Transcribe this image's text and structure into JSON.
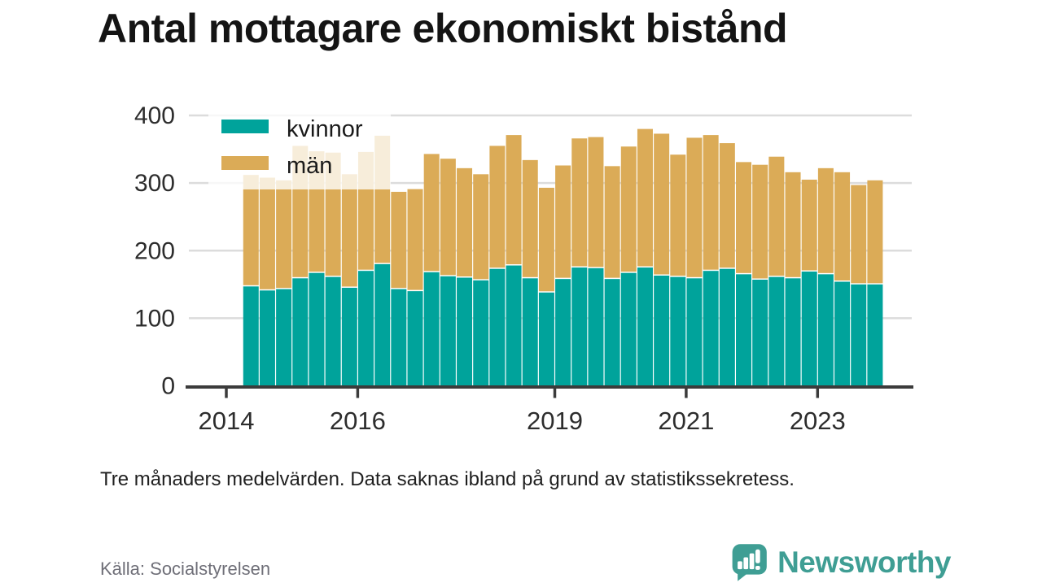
{
  "title": "Antal mottagare ekonomiskt bistånd",
  "note": "Tre månaders medelvärden. Data saknas ibland på grund av statistikssekretess.",
  "source": "Källa: Socialstyrelsen",
  "logo_text": "Newsworthy",
  "colors": {
    "kvinnor": "#00a39b",
    "man": "#dbab57",
    "logo_teal": "#3f9e94",
    "axis": "#3b3b3b",
    "grid": "#dcdcdc",
    "text": "#2d2d2d",
    "legend_text": "#1a1a1a",
    "legend_bg_opacity": 0.78
  },
  "chart_data": {
    "type": "bar",
    "stacked": true,
    "title": "Antal mottagare ekonomiskt bistånd",
    "x_periods": [
      "2014-Q2",
      "2014-Q3",
      "2014-Q4",
      "2015-Q1",
      "2015-Q2",
      "2015-Q3",
      "2015-Q4",
      "2016-Q1",
      "2016-Q2",
      "2016-Q3",
      "2016-Q4",
      "2017-Q1",
      "2017-Q2",
      "2017-Q3",
      "2017-Q4",
      "2018-Q1",
      "2018-Q2",
      "2018-Q3",
      "2018-Q4",
      "2019-Q1",
      "2019-Q2",
      "2019-Q3",
      "2019-Q4",
      "2020-Q1",
      "2020-Q2",
      "2020-Q3",
      "2020-Q4",
      "2021-Q1",
      "2021-Q2",
      "2021-Q3",
      "2021-Q4",
      "2022-Q1",
      "2022-Q2",
      "2022-Q3",
      "2022-Q4",
      "2023-Q1",
      "2023-Q2",
      "2023-Q3",
      "2023-Q4"
    ],
    "series": [
      {
        "name": "kvinnor",
        "values": [
          147,
          141,
          143,
          159,
          167,
          161,
          145,
          170,
          180,
          143,
          140,
          168,
          162,
          160,
          156,
          173,
          178,
          159,
          138,
          158,
          175,
          174,
          158,
          167,
          175,
          163,
          161,
          159,
          170,
          173,
          165,
          157,
          161,
          159,
          169,
          165,
          154,
          150,
          150
        ]
      },
      {
        "name": "män",
        "values": [
          165,
          167,
          161,
          196,
          180,
          184,
          168,
          176,
          190,
          144,
          151,
          175,
          174,
          162,
          157,
          182,
          193,
          175,
          155,
          168,
          191,
          194,
          167,
          187,
          205,
          210,
          181,
          208,
          201,
          186,
          166,
          170,
          178,
          157,
          136,
          157,
          162,
          147,
          154
        ]
      }
    ],
    "ylim": [
      0,
      400
    ],
    "yticks": [
      0,
      100,
      200,
      300,
      400
    ],
    "xticks": [
      "2014",
      "2016",
      "2019",
      "2021",
      "2023"
    ],
    "grid": true,
    "legend_position": "top-left"
  }
}
